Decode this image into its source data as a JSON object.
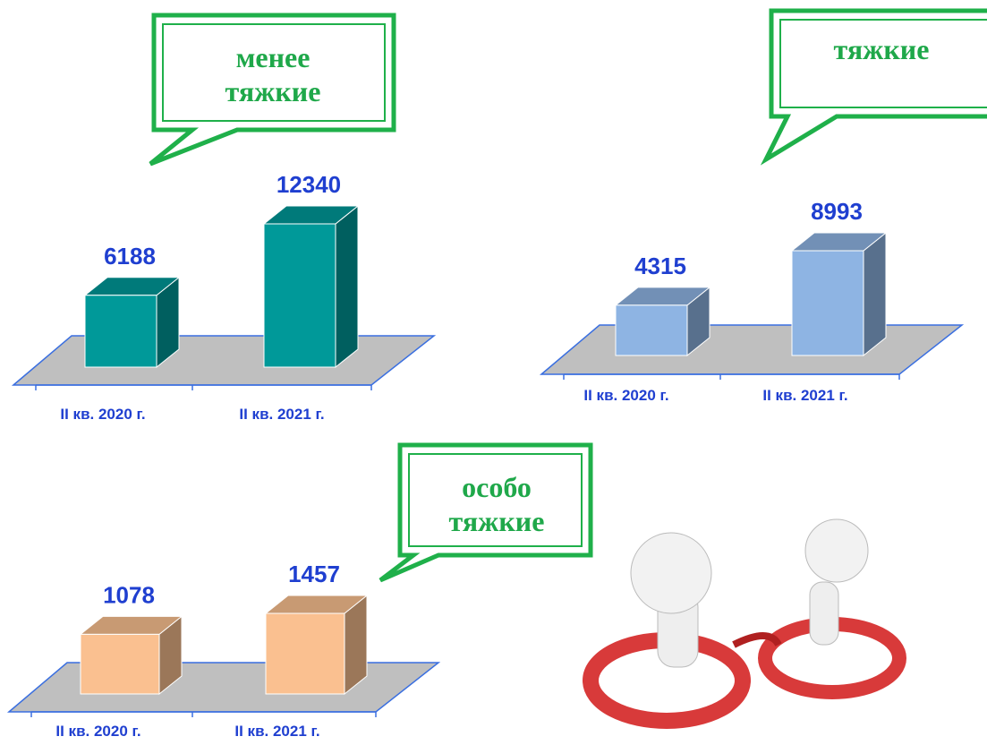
{
  "chart_data": [
    {
      "type": "bar",
      "title": "менее тяжкие",
      "categories": [
        "II кв. 2020 г.",
        "II кв. 2021 г."
      ],
      "values": [
        6188,
        12340
      ],
      "color": "#009999"
    },
    {
      "type": "bar",
      "title": "тяжкие",
      "categories": [
        "II кв. 2020 г.",
        "II кв. 2021 г."
      ],
      "values": [
        4315,
        8993
      ],
      "color": "#8eb4e3"
    },
    {
      "type": "bar",
      "title": "особо тяжкие",
      "categories": [
        "II кв. 2020 г.",
        "II кв. 2021 г."
      ],
      "values": [
        1078,
        1457
      ],
      "color": "#fac090"
    }
  ]
}
